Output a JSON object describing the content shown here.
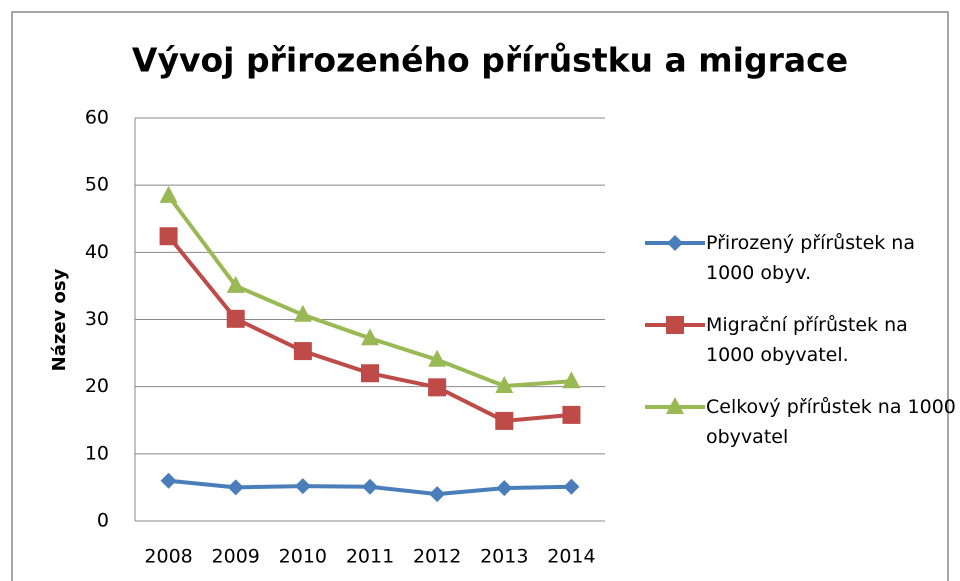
{
  "chart_data": {
    "type": "line",
    "title": "Vývoj přirozeného přírůstku a migrace",
    "y_label": "Název osy",
    "categories": [
      "2008",
      "2009",
      "2010",
      "2011",
      "2012",
      "2013",
      "2014"
    ],
    "series": [
      {
        "name": "Přirozený přírůstek na 1000 obyv.",
        "color": "#4a7ebb",
        "marker": "diamond",
        "values": [
          6.0,
          5.0,
          5.2,
          5.1,
          4.0,
          4.9,
          5.1
        ]
      },
      {
        "name": "Migrační přírůstek na 1000 obyvatel.",
        "color": "#be4b48",
        "marker": "square",
        "values": [
          42.4,
          30.1,
          25.3,
          22.0,
          19.9,
          14.9,
          15.8
        ]
      },
      {
        "name": "Celkový přírůstek na 1000 obyvatel",
        "color": "#98b954",
        "marker": "triangle",
        "values": [
          48.4,
          35.0,
          30.7,
          27.2,
          24.0,
          20.1,
          20.8
        ]
      }
    ],
    "ylim": [
      0,
      60
    ],
    "yticks": [
      0,
      10,
      20,
      30,
      40,
      50,
      60
    ],
    "grid": true,
    "legend": "right"
  }
}
